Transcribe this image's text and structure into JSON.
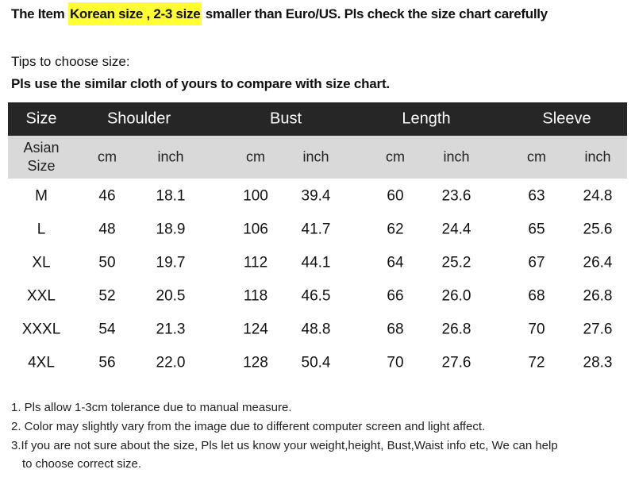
{
  "title": {
    "prefix": "The Item ",
    "highlight": "Korean size , 2-3 size",
    "suffix": " smaller than Euro/US. Pls check the size chart carefully",
    "highlight_color": "#ffff33"
  },
  "tips": {
    "heading": "Tips to choose size:",
    "advice": "Pls use the similar cloth of yours to compare with size chart."
  },
  "table": {
    "header_bg": "#262626",
    "subheader_bg": "#d9d9d9",
    "headers": [
      "Size",
      "Shoulder",
      "Bust",
      "Length",
      "Sleeve"
    ],
    "subheaders": [
      "Asian\nSize",
      "cm",
      "inch",
      "cm",
      "inch",
      "cm",
      "inch",
      "cm",
      "inch"
    ],
    "rows": [
      [
        "M",
        "46",
        "18.1",
        "100",
        "39.4",
        "60",
        "23.6",
        "63",
        "24.8"
      ],
      [
        "L",
        "48",
        "18.9",
        "106",
        "41.7",
        "62",
        "24.4",
        "65",
        "25.6"
      ],
      [
        "XL",
        "50",
        "19.7",
        "112",
        "44.1",
        "64",
        "25.2",
        "67",
        "26.4"
      ],
      [
        "XXL",
        "52",
        "20.5",
        "118",
        "46.5",
        "66",
        "26.0",
        "68",
        "26.8"
      ],
      [
        "XXXL",
        "54",
        "21.3",
        "124",
        "48.8",
        "68",
        "26.8",
        "70",
        "27.6"
      ],
      [
        "4XL",
        "56",
        "22.0",
        "128",
        "50.4",
        "70",
        "27.6",
        "72",
        "28.3"
      ]
    ]
  },
  "notes": [
    "1. Pls allow 1-3cm tolerance due to manual measure.",
    "2. Color may slightly vary from the image due to different computer screen and light affect.",
    "3.If you are not sure about the size, Pls let us know your weight,height, Bust,Waist info etc, We can help",
    "   to choose correct size."
  ]
}
